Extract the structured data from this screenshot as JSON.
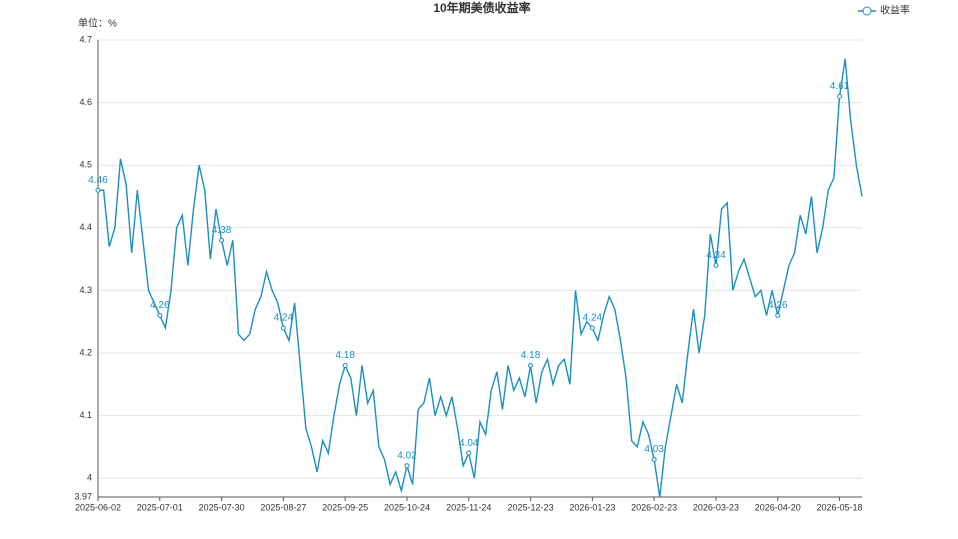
{
  "chart_data": {
    "type": "line",
    "title": "10年期美债收益率",
    "unit_label": "单位：%",
    "categories": [
      "2025-06-02",
      null,
      null,
      null,
      null,
      null,
      null,
      null,
      null,
      null,
      null,
      "2025-07-01",
      null,
      null,
      null,
      null,
      null,
      null,
      null,
      null,
      null,
      null,
      "2025-07-30",
      null,
      null,
      null,
      null,
      null,
      null,
      null,
      null,
      null,
      null,
      "2025-08-27",
      null,
      null,
      null,
      null,
      null,
      null,
      null,
      null,
      null,
      null,
      "2025-09-25",
      null,
      null,
      null,
      null,
      null,
      null,
      null,
      null,
      null,
      null,
      "2025-10-24",
      null,
      null,
      null,
      null,
      null,
      null,
      null,
      null,
      null,
      null,
      "2025-11-24",
      null,
      null,
      null,
      null,
      null,
      null,
      null,
      null,
      null,
      null,
      "2025-12-23",
      null,
      null,
      null,
      null,
      null,
      null,
      null,
      null,
      null,
      null,
      "2026-01-23",
      null,
      null,
      null,
      null,
      null,
      null,
      null,
      null,
      null,
      null,
      "2026-02-23",
      null,
      null,
      null,
      null,
      null,
      null,
      null,
      null,
      null,
      null,
      "2026-03-23",
      null,
      null,
      null,
      null,
      null,
      null,
      null,
      null,
      null,
      null,
      "2026-04-20",
      null,
      null,
      null,
      null,
      null,
      null,
      null,
      null,
      null,
      null,
      "2026-05-18",
      null,
      null,
      null,
      null
    ],
    "series": [
      {
        "name": "收益率",
        "color": "#1a8fc2",
        "values": [
          4.46,
          4.46,
          4.37,
          4.4,
          4.51,
          4.47,
          4.36,
          4.46,
          4.38,
          4.3,
          4.28,
          4.26,
          4.24,
          4.3,
          4.4,
          4.42,
          4.34,
          4.43,
          4.5,
          4.46,
          4.35,
          4.43,
          4.38,
          4.34,
          4.38,
          4.23,
          4.22,
          4.23,
          4.27,
          4.29,
          4.33,
          4.3,
          4.28,
          4.24,
          4.22,
          4.28,
          4.18,
          4.08,
          4.05,
          4.01,
          4.06,
          4.04,
          4.1,
          4.15,
          4.18,
          4.16,
          4.1,
          4.18,
          4.12,
          4.14,
          4.05,
          4.03,
          3.99,
          4.01,
          3.98,
          4.02,
          3.99,
          4.11,
          4.12,
          4.16,
          4.1,
          4.13,
          4.1,
          4.13,
          4.08,
          4.02,
          4.04,
          4.0,
          4.09,
          4.07,
          4.14,
          4.17,
          4.11,
          4.18,
          4.14,
          4.16,
          4.13,
          4.18,
          4.12,
          4.17,
          4.19,
          4.15,
          4.18,
          4.19,
          4.15,
          4.3,
          4.23,
          4.25,
          4.24,
          4.22,
          4.26,
          4.29,
          4.27,
          4.22,
          4.16,
          4.06,
          4.05,
          4.09,
          4.07,
          4.03,
          3.97,
          4.05,
          4.1,
          4.15,
          4.12,
          4.2,
          4.27,
          4.2,
          4.26,
          4.39,
          4.34,
          4.43,
          4.44,
          4.3,
          4.33,
          4.35,
          4.32,
          4.29,
          4.3,
          4.26,
          4.3,
          4.26,
          4.3,
          4.34,
          4.36,
          4.42,
          4.39,
          4.45,
          4.36,
          4.4,
          4.46,
          4.48,
          4.61,
          4.67,
          4.57,
          4.5,
          4.45
        ],
        "value_labels": [
          "4.46",
          null,
          null,
          null,
          null,
          null,
          null,
          null,
          null,
          null,
          null,
          "4.26",
          null,
          null,
          null,
          null,
          null,
          null,
          null,
          null,
          null,
          null,
          "4.38",
          null,
          null,
          null,
          null,
          null,
          null,
          null,
          null,
          null,
          null,
          "4.24",
          null,
          null,
          null,
          null,
          null,
          null,
          null,
          null,
          null,
          null,
          "4.18",
          null,
          null,
          null,
          null,
          null,
          null,
          null,
          null,
          null,
          null,
          "4.02",
          null,
          null,
          null,
          null,
          null,
          null,
          null,
          null,
          null,
          null,
          "4.04",
          null,
          null,
          null,
          null,
          null,
          null,
          null,
          null,
          null,
          null,
          "4.18",
          null,
          null,
          null,
          null,
          null,
          null,
          null,
          null,
          null,
          null,
          "4.24",
          null,
          null,
          null,
          null,
          null,
          null,
          null,
          null,
          null,
          null,
          "4.03",
          null,
          null,
          null,
          null,
          null,
          null,
          null,
          null,
          null,
          null,
          "4.34",
          null,
          null,
          null,
          null,
          null,
          null,
          null,
          null,
          null,
          null,
          "4.26",
          null,
          null,
          null,
          null,
          null,
          null,
          null,
          null,
          null,
          null,
          "4.61",
          null,
          null,
          null,
          null
        ]
      }
    ],
    "ylim": [
      3.97,
      4.7
    ],
    "yticks": [
      3.97,
      4,
      4.1,
      4.2,
      4.3,
      4.4,
      4.5,
      4.6,
      4.7
    ],
    "grid": true,
    "legend": "top-right"
  }
}
